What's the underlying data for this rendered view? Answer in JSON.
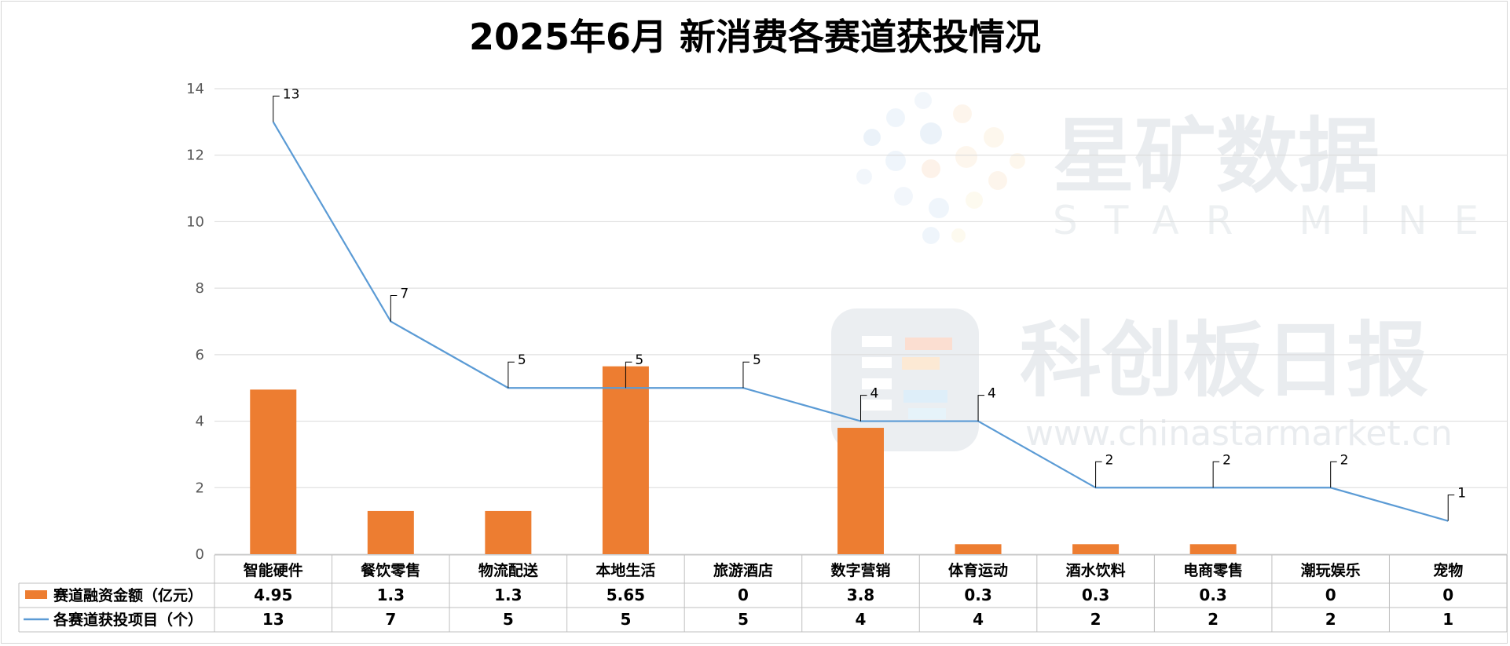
{
  "chart_data": {
    "type": "bar+line",
    "title": "2025年6月 新消费各赛道获投情况",
    "categories": [
      "智能硬件",
      "餐饮零售",
      "物流配送",
      "本地生活",
      "旅游酒店",
      "数字营销",
      "体育运动",
      "酒水饮料",
      "电商零售",
      "潮玩娱乐",
      "宠物"
    ],
    "series": [
      {
        "name": "赛道融资金额（亿元）",
        "type": "bar",
        "color": "#ed7d31",
        "values": [
          4.95,
          1.3,
          1.3,
          5.65,
          0,
          3.8,
          0.3,
          0.3,
          0.3,
          0,
          0
        ]
      },
      {
        "name": "各赛道获投项目（个）",
        "type": "line",
        "color": "#5b9bd5",
        "values": [
          13,
          7,
          5,
          5,
          5,
          4,
          4,
          2,
          2,
          2,
          1
        ]
      }
    ],
    "table_values": {
      "bar": [
        "4.95",
        "1.3",
        "1.3",
        "5.65",
        "0",
        "3.8",
        "0.3",
        "0.3",
        "0.3",
        "0",
        "0"
      ],
      "line": [
        "13",
        "7",
        "5",
        "5",
        "5",
        "4",
        "4",
        "2",
        "2",
        "2",
        "1"
      ]
    },
    "ylim": [
      0,
      14
    ],
    "yticks": [
      "0",
      "2",
      "4",
      "6",
      "8",
      "10",
      "12",
      "14"
    ],
    "grid": true,
    "legend": "data-table-left"
  },
  "watermark": {
    "brand_cn": "星矿数据",
    "brand_en": "STAR MINE",
    "source_cn": "科创板日报",
    "source_url": "www.chinastarmarket.cn"
  }
}
